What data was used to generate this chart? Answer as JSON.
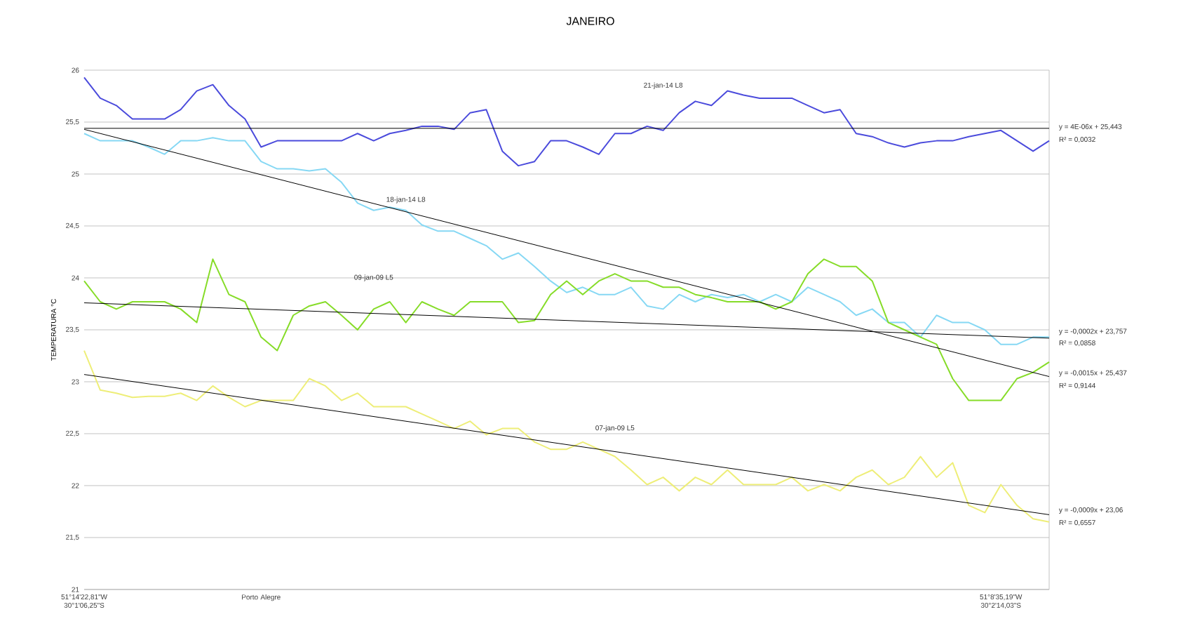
{
  "chart_data": {
    "type": "line",
    "title": "JANEIRO",
    "ylabel": "TEMPERATURA °C",
    "categories": [
      "51°14'22,81\"W 30°1'06,25\"S",
      null,
      null,
      null,
      null,
      null,
      null,
      null,
      null,
      null,
      null,
      "Porto Alegre",
      null,
      null,
      null,
      null,
      null,
      null,
      null,
      null,
      null,
      null,
      null,
      null,
      null,
      null,
      null,
      null,
      null,
      null,
      null,
      null,
      null,
      null,
      null,
      null,
      null,
      null,
      null,
      null,
      null,
      null,
      null,
      null,
      null,
      null,
      null,
      null,
      null,
      null,
      null,
      null,
      null,
      null,
      null,
      null,
      null,
      "51°8'35,19\"W 30°2'14,03\"S",
      null,
      null,
      null
    ],
    "series": [
      {
        "name": "21-jan-14 L8",
        "color": "#4b4bdc",
        "values": [
          25.93,
          25.73,
          25.66,
          25.53,
          25.53,
          25.53,
          25.62,
          25.8,
          25.86,
          25.66,
          25.53,
          25.26,
          25.32,
          25.32,
          25.32,
          25.32,
          25.32,
          25.39,
          25.32,
          25.39,
          25.42,
          25.46,
          25.46,
          25.43,
          25.59,
          25.62,
          25.22,
          25.08,
          25.12,
          25.32,
          25.32,
          25.26,
          25.19,
          25.39,
          25.39,
          25.46,
          25.42,
          25.59,
          25.7,
          25.66,
          25.8,
          25.76,
          25.73,
          25.73,
          25.73,
          25.66,
          25.59,
          25.62,
          25.39,
          25.36,
          25.3,
          25.26,
          25.3,
          25.32,
          25.32,
          25.36,
          25.39,
          25.42,
          25.32,
          25.22,
          25.32
        ]
      },
      {
        "name": "18-jan-14 L8",
        "color": "#86d8f4",
        "values": [
          25.39,
          25.32,
          25.32,
          25.32,
          25.26,
          25.19,
          25.32,
          25.32,
          25.35,
          25.32,
          25.32,
          25.12,
          25.05,
          25.05,
          25.03,
          25.05,
          24.92,
          24.72,
          24.65,
          24.68,
          24.65,
          24.51,
          24.45,
          24.45,
          24.38,
          24.31,
          24.18,
          24.24,
          24.11,
          23.97,
          23.86,
          23.91,
          23.84,
          23.84,
          23.91,
          23.73,
          23.7,
          23.84,
          23.77,
          23.84,
          23.81,
          23.84,
          23.77,
          23.84,
          23.77,
          23.91,
          23.84,
          23.77,
          23.64,
          23.7,
          23.57,
          23.57,
          23.43,
          23.64,
          23.57,
          23.57,
          23.5,
          23.36,
          23.36,
          23.43,
          23.43
        ]
      },
      {
        "name": "09-jan-09 L5",
        "color": "#86dc28",
        "values": [
          23.97,
          23.77,
          23.7,
          23.77,
          23.77,
          23.77,
          23.7,
          23.57,
          24.18,
          23.84,
          23.77,
          23.43,
          23.3,
          23.64,
          23.73,
          23.77,
          23.64,
          23.5,
          23.7,
          23.77,
          23.57,
          23.77,
          23.7,
          23.64,
          23.77,
          23.77,
          23.77,
          23.57,
          23.59,
          23.84,
          23.97,
          23.84,
          23.97,
          24.04,
          23.97,
          23.97,
          23.91,
          23.91,
          23.84,
          23.81,
          23.77,
          23.77,
          23.77,
          23.7,
          23.77,
          24.04,
          24.18,
          24.11,
          24.11,
          23.97,
          23.57,
          23.5,
          23.43,
          23.36,
          23.03,
          22.82,
          22.82,
          22.82,
          23.03,
          23.09,
          23.19
        ]
      },
      {
        "name": "07-jan-09 L5",
        "color": "#eeee78",
        "values": [
          23.3,
          22.92,
          22.89,
          22.85,
          22.86,
          22.86,
          22.89,
          22.82,
          22.96,
          22.85,
          22.76,
          22.82,
          22.82,
          22.82,
          23.03,
          22.96,
          22.82,
          22.89,
          22.76,
          22.76,
          22.76,
          22.69,
          22.62,
          22.55,
          22.62,
          22.49,
          22.55,
          22.55,
          22.42,
          22.35,
          22.35,
          22.42,
          22.35,
          22.28,
          22.15,
          22.01,
          22.08,
          21.95,
          22.08,
          22.01,
          22.15,
          22.01,
          22.01,
          22.01,
          22.08,
          21.95,
          22.01,
          21.95,
          22.08,
          22.15,
          22.01,
          22.08,
          22.28,
          22.08,
          22.22,
          21.81,
          21.74,
          22.01,
          21.81,
          21.68,
          21.65
        ]
      },
      {
        "type": "line",
        "color": "#000000",
        "values": [
          25.44,
          null,
          null,
          null,
          null,
          null,
          null,
          null,
          null,
          null,
          null,
          null,
          null,
          null,
          null,
          null,
          null,
          null,
          null,
          null,
          null,
          null,
          null,
          null,
          null,
          null,
          null,
          null,
          null,
          null,
          null,
          null,
          null,
          null,
          null,
          null,
          null,
          null,
          null,
          null,
          null,
          null,
          null,
          null,
          null,
          null,
          null,
          null,
          null,
          null,
          null,
          null,
          null,
          null,
          null,
          null,
          null,
          null,
          null,
          null,
          25.44
        ]
      },
      {
        "type": "line",
        "color": "#000000",
        "values": [
          25.43,
          null,
          null,
          null,
          null,
          null,
          null,
          null,
          null,
          null,
          null,
          null,
          null,
          null,
          null,
          null,
          null,
          null,
          null,
          null,
          null,
          null,
          null,
          null,
          null,
          null,
          null,
          null,
          null,
          null,
          null,
          null,
          null,
          null,
          null,
          null,
          null,
          null,
          null,
          null,
          null,
          null,
          null,
          null,
          null,
          null,
          null,
          null,
          null,
          null,
          null,
          null,
          null,
          null,
          null,
          null,
          null,
          null,
          null,
          null,
          23.05
        ]
      },
      {
        "type": "line",
        "color": "#000000",
        "values": [
          23.76,
          null,
          null,
          null,
          null,
          null,
          null,
          null,
          null,
          null,
          null,
          null,
          null,
          null,
          null,
          null,
          null,
          null,
          null,
          null,
          null,
          null,
          null,
          null,
          null,
          null,
          null,
          null,
          null,
          null,
          null,
          null,
          null,
          null,
          null,
          null,
          null,
          null,
          null,
          null,
          null,
          null,
          null,
          null,
          null,
          null,
          null,
          null,
          null,
          null,
          null,
          null,
          null,
          null,
          null,
          null,
          null,
          null,
          null,
          null,
          23.42
        ]
      },
      {
        "type": "line",
        "color": "#000000",
        "values": [
          23.07,
          null,
          null,
          null,
          null,
          null,
          null,
          null,
          null,
          null,
          null,
          null,
          null,
          null,
          null,
          null,
          null,
          null,
          null,
          null,
          null,
          null,
          null,
          null,
          null,
          null,
          null,
          null,
          null,
          null,
          null,
          null,
          null,
          null,
          null,
          null,
          null,
          null,
          null,
          null,
          null,
          null,
          null,
          null,
          null,
          null,
          null,
          null,
          null,
          null,
          null,
          null,
          null,
          null,
          null,
          null,
          null,
          null,
          null,
          null,
          21.72
        ]
      }
    ],
    "ylim": [
      21,
      26
    ],
    "yticks": [
      {
        "value": 21,
        "label": "21"
      },
      {
        "value": 21.5,
        "label": "21,5"
      },
      {
        "value": 22,
        "label": "22"
      },
      {
        "value": 22.5,
        "label": "22,5"
      },
      {
        "value": 23,
        "label": "23"
      },
      {
        "value": 23.5,
        "label": "23,5"
      },
      {
        "value": 24,
        "label": "24"
      },
      {
        "value": 24.5,
        "label": "24,5"
      },
      {
        "value": 25,
        "label": "25"
      },
      {
        "value": 25.5,
        "label": "25,5"
      },
      {
        "value": 26,
        "label": "26"
      }
    ],
    "grid": "y",
    "legend": false,
    "marker": "none",
    "line_style": "solid",
    "annotations": [
      "y = 4E-06x + 25,443",
      "R² = 0,0032",
      "y = -0,0002x + 23,757",
      "R² = 0,0858",
      "y = -0,0015x + 25,437",
      "R² = 0,9144",
      "y = -0,0009x + 23,06",
      "R² = 0,6557"
    ]
  }
}
